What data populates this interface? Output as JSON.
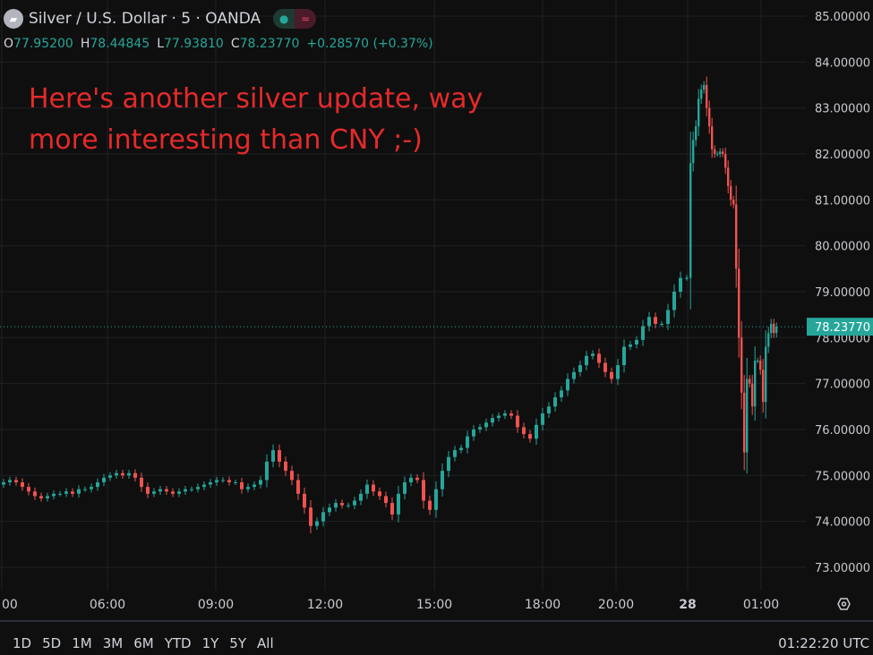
{
  "header": {
    "symbol": "Silver / U.S. Dollar · 5 · OANDA",
    "status_icons": [
      "market-open-dot-icon",
      "data-delay-icon"
    ]
  },
  "ohlc": {
    "o_label": "O",
    "o": "77.95200",
    "h_label": "H",
    "h": "78.44845",
    "l_label": "L",
    "l": "77.93810",
    "c_label": "C",
    "c": "78.23770",
    "change": "+0.28570 (+0.37%)"
  },
  "annotation": {
    "line1": "Here's another silver update, way",
    "line2": "more interesting than CNY ;-)"
  },
  "bottom": {
    "ranges": [
      "1D",
      "5D",
      "1M",
      "3M",
      "6M",
      "YTD",
      "1Y",
      "5Y",
      "All"
    ],
    "clock": "01:22:20 UTC"
  },
  "colors": {
    "up": "#26a69a",
    "down": "#ef5350",
    "annotation": "#e52a2a",
    "background": "#0f0f0f"
  },
  "chart_data": {
    "type": "candlestick",
    "title": "Silver / U.S. Dollar · 5 · OANDA",
    "y_ticks": [
      "73.00000",
      "74.00000",
      "75.00000",
      "76.00000",
      "77.00000",
      "78.00000",
      "79.00000",
      "80.00000",
      "81.00000",
      "82.00000",
      "83.00000",
      "84.00000",
      "85.00000"
    ],
    "ylim": [
      73,
      85
    ],
    "x_ticks": [
      "00",
      "06:00",
      "09:00",
      "12:00",
      "15:00",
      "18:00",
      "20:00",
      "28",
      "01:00"
    ],
    "last_price": "78.23770",
    "grid": true,
    "closes": [
      74.85,
      74.9,
      74.85,
      74.75,
      74.65,
      74.55,
      74.5,
      74.55,
      74.6,
      74.6,
      74.65,
      74.6,
      74.7,
      74.7,
      74.75,
      74.85,
      74.95,
      75.0,
      75.05,
      75.0,
      75.05,
      74.95,
      74.75,
      74.6,
      74.65,
      74.7,
      74.65,
      74.6,
      74.65,
      74.7,
      74.7,
      74.75,
      74.8,
      74.85,
      74.9,
      74.9,
      74.85,
      74.85,
      74.7,
      74.75,
      74.8,
      74.9,
      75.3,
      75.55,
      75.3,
      75.1,
      74.9,
      74.6,
      74.3,
      73.9,
      74.0,
      74.2,
      74.3,
      74.4,
      74.35,
      74.35,
      74.45,
      74.6,
      74.8,
      74.65,
      74.55,
      74.4,
      74.15,
      74.6,
      74.85,
      74.95,
      74.9,
      74.45,
      74.25,
      74.7,
      75.1,
      75.4,
      75.55,
      75.6,
      75.85,
      76.0,
      76.05,
      76.15,
      76.25,
      76.3,
      76.35,
      76.3,
      76.05,
      75.9,
      75.8,
      76.1,
      76.35,
      76.5,
      76.7,
      76.85,
      77.1,
      77.25,
      77.4,
      77.6,
      77.65,
      77.45,
      77.25,
      77.1,
      77.4,
      77.8,
      77.85,
      77.95,
      78.25,
      78.45,
      78.3,
      78.3,
      78.6,
      79.0,
      79.3,
      79.3,
      81.8,
      82.3,
      82.6,
      83.2,
      83.4,
      83.5,
      83.0,
      82.6,
      82.1,
      82.0,
      82.0,
      82.05,
      82.0,
      81.7,
      81.3,
      81.0,
      80.9,
      79.5,
      78.0,
      76.8,
      75.5,
      77.1,
      77.0,
      76.5,
      77.5,
      77.5,
      77.3,
      76.6,
      77.8,
      78.1,
      78.3,
      78.1,
      78.2377
    ]
  }
}
